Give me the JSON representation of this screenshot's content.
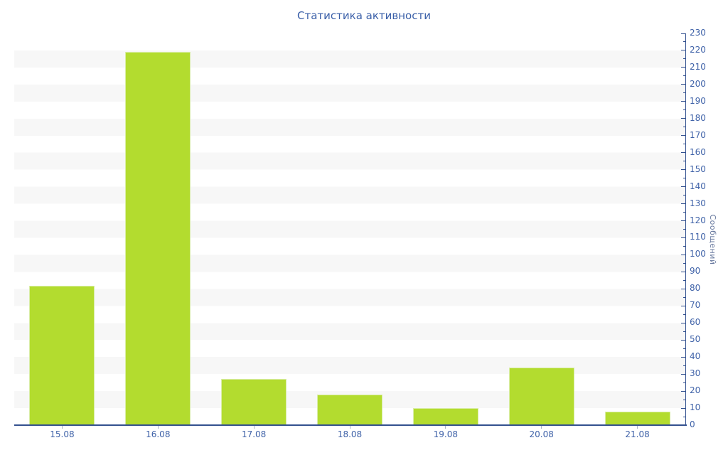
{
  "page": {
    "background": "#ffffff"
  },
  "chart_data": {
    "type": "bar",
    "title": "Статистика активности",
    "categories": [
      "15.08",
      "16.08",
      "17.08",
      "18.08",
      "19.08",
      "20.08",
      "21.08"
    ],
    "values": [
      82,
      219,
      27,
      18,
      10,
      34,
      8
    ],
    "xlabel": "",
    "ylabel": "Сообщений",
    "ylim": [
      0,
      230
    ],
    "y_major_tick": 10,
    "y_minor_tick": 5,
    "y_axis_side": "right",
    "grid": "alternating horizontal stripes every 10 units",
    "legend": "none",
    "colors": {
      "bar": "#b3dc2f",
      "bar_edge": "#d9eda6",
      "axis": "#33518f",
      "tick_label": "#3f62a8",
      "x_tick_mark": "#a9b2c6",
      "title": "#3a5fa8",
      "ylabel": "#67789e",
      "stripe": "#f7f7f7",
      "background": "#ffffff"
    }
  }
}
